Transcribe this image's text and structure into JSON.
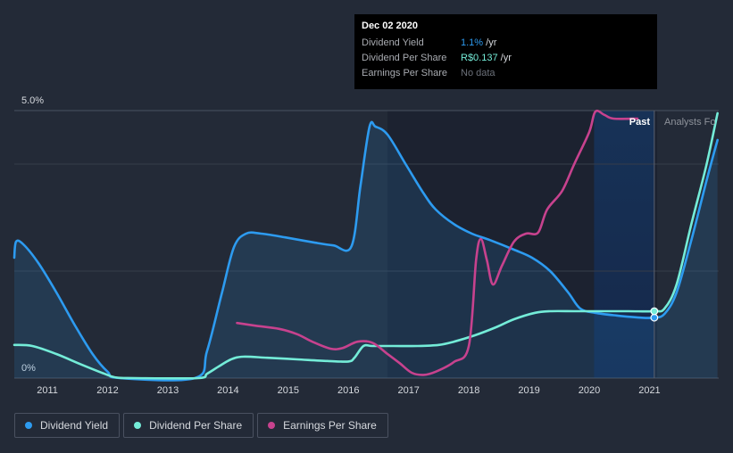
{
  "chart_data": {
    "type": "line",
    "y_axis": {
      "top_label": "5.0%",
      "bottom_label": "0%",
      "ylim": [
        0,
        5.0
      ]
    },
    "x_ticks": [
      "2011",
      "2012",
      "2013",
      "2014",
      "2015",
      "2016",
      "2017",
      "2018",
      "2019",
      "2020",
      "2021"
    ],
    "xlim": [
      2010.3,
      2022.0
    ],
    "region_labels": {
      "past": "Past",
      "forecast": "Analysts Fo"
    },
    "divider_x": 2020.93,
    "forecast_start_x": 2019.93,
    "series": [
      {
        "name": "Dividend Yield",
        "color": "#2d9bf0",
        "filled": true,
        "points": [
          [
            2010.3,
            2.25
          ],
          [
            2010.33,
            2.55
          ],
          [
            2010.45,
            2.5
          ],
          [
            2010.7,
            2.15
          ],
          [
            2011.0,
            1.6
          ],
          [
            2011.3,
            1.0
          ],
          [
            2011.6,
            0.45
          ],
          [
            2011.85,
            0.12
          ],
          [
            2012.05,
            0
          ],
          [
            2013.3,
            0
          ],
          [
            2013.5,
            0.5
          ],
          [
            2013.75,
            1.6
          ],
          [
            2013.95,
            2.45
          ],
          [
            2014.15,
            2.7
          ],
          [
            2014.4,
            2.7
          ],
          [
            2014.8,
            2.63
          ],
          [
            2015.3,
            2.53
          ],
          [
            2015.6,
            2.48
          ],
          [
            2015.9,
            2.46
          ],
          [
            2016.05,
            3.6
          ],
          [
            2016.2,
            4.7
          ],
          [
            2016.3,
            4.7
          ],
          [
            2016.5,
            4.55
          ],
          [
            2016.8,
            4.0
          ],
          [
            2017.1,
            3.45
          ],
          [
            2017.3,
            3.15
          ],
          [
            2017.6,
            2.88
          ],
          [
            2017.9,
            2.7
          ],
          [
            2018.2,
            2.58
          ],
          [
            2018.6,
            2.4
          ],
          [
            2018.9,
            2.25
          ],
          [
            2019.2,
            2.0
          ],
          [
            2019.5,
            1.6
          ],
          [
            2019.7,
            1.3
          ],
          [
            2019.95,
            1.22
          ],
          [
            2020.3,
            1.17
          ],
          [
            2020.7,
            1.13
          ],
          [
            2020.93,
            1.13
          ],
          [
            2021.1,
            1.2
          ],
          [
            2021.3,
            1.6
          ],
          [
            2021.55,
            2.6
          ],
          [
            2021.8,
            3.7
          ],
          [
            2021.98,
            4.45
          ]
        ]
      },
      {
        "name": "Dividend Per Share",
        "color": "#74ecd8",
        "filled": false,
        "points": [
          [
            2010.3,
            0.62
          ],
          [
            2010.6,
            0.6
          ],
          [
            2011.0,
            0.45
          ],
          [
            2011.4,
            0.26
          ],
          [
            2011.8,
            0.08
          ],
          [
            2012.0,
            0.01
          ],
          [
            2012.3,
            0
          ],
          [
            2013.35,
            0
          ],
          [
            2013.5,
            0.08
          ],
          [
            2013.7,
            0.22
          ],
          [
            2013.9,
            0.35
          ],
          [
            2014.1,
            0.4
          ],
          [
            2014.5,
            0.38
          ],
          [
            2015.0,
            0.35
          ],
          [
            2015.5,
            0.32
          ],
          [
            2015.85,
            0.31
          ],
          [
            2015.95,
            0.38
          ],
          [
            2016.1,
            0.6
          ],
          [
            2016.25,
            0.6
          ],
          [
            2016.6,
            0.6
          ],
          [
            2017.0,
            0.6
          ],
          [
            2017.35,
            0.62
          ],
          [
            2017.6,
            0.68
          ],
          [
            2017.95,
            0.8
          ],
          [
            2018.3,
            0.95
          ],
          [
            2018.6,
            1.1
          ],
          [
            2018.95,
            1.22
          ],
          [
            2019.2,
            1.25
          ],
          [
            2019.6,
            1.25
          ],
          [
            2020.0,
            1.25
          ],
          [
            2020.5,
            1.25
          ],
          [
            2020.93,
            1.25
          ],
          [
            2021.1,
            1.3
          ],
          [
            2021.3,
            1.75
          ],
          [
            2021.55,
            2.9
          ],
          [
            2021.8,
            4.0
          ],
          [
            2021.98,
            4.95
          ]
        ]
      },
      {
        "name": "Earnings Per Share",
        "color": "#c7428e",
        "filled": false,
        "points": [
          [
            2014.0,
            1.03
          ],
          [
            2014.3,
            0.98
          ],
          [
            2014.7,
            0.92
          ],
          [
            2015.0,
            0.82
          ],
          [
            2015.25,
            0.68
          ],
          [
            2015.55,
            0.55
          ],
          [
            2015.75,
            0.56
          ],
          [
            2016.0,
            0.68
          ],
          [
            2016.25,
            0.66
          ],
          [
            2016.5,
            0.45
          ],
          [
            2016.7,
            0.28
          ],
          [
            2016.9,
            0.1
          ],
          [
            2017.1,
            0.06
          ],
          [
            2017.3,
            0.12
          ],
          [
            2017.6,
            0.3
          ],
          [
            2017.85,
            0.6
          ],
          [
            2017.97,
            2.2
          ],
          [
            2018.05,
            2.6
          ],
          [
            2018.15,
            2.2
          ],
          [
            2018.25,
            1.75
          ],
          [
            2018.4,
            2.1
          ],
          [
            2018.6,
            2.55
          ],
          [
            2018.8,
            2.7
          ],
          [
            2019.0,
            2.72
          ],
          [
            2019.15,
            3.15
          ],
          [
            2019.4,
            3.5
          ],
          [
            2019.6,
            4.0
          ],
          [
            2019.85,
            4.6
          ],
          [
            2019.95,
            4.98
          ],
          [
            2020.1,
            4.92
          ],
          [
            2020.25,
            4.85
          ],
          [
            2020.65,
            4.85
          ]
        ]
      }
    ],
    "markers": [
      {
        "series": "Dividend Yield",
        "x": 2020.93,
        "y": 1.13
      },
      {
        "series": "Dividend Per Share",
        "x": 2020.93,
        "y": 1.25
      }
    ]
  },
  "tooltip": {
    "date": "Dec 02 2020",
    "rows": [
      {
        "label": "Dividend Yield",
        "value": "1.1%",
        "unit": " /yr"
      },
      {
        "label": "Dividend Per Share",
        "value": "R$0.137",
        "unit": " /yr"
      },
      {
        "label": "Earnings Per Share",
        "nodata": "No data"
      }
    ]
  },
  "legend": [
    {
      "label": "Dividend Yield",
      "color": "#2d9bf0"
    },
    {
      "label": "Dividend Per Share",
      "color": "#74ecd8"
    },
    {
      "label": "Earnings Per Share",
      "color": "#c7428e"
    }
  ]
}
